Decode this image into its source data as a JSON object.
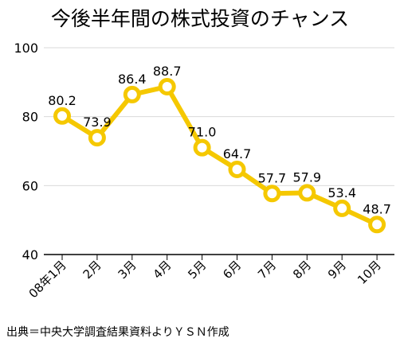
{
  "chart_data": {
    "type": "line",
    "title": "今後半年間の株式投資のチャンス",
    "categories": [
      "08年1月",
      "2月",
      "3月",
      "4月",
      "5月",
      "6月",
      "7月",
      "8月",
      "9月",
      "10月"
    ],
    "series": [
      {
        "values": [
          80.2,
          73.9,
          86.4,
          88.7,
          71.0,
          64.7,
          57.7,
          57.9,
          53.4,
          48.7
        ]
      }
    ],
    "data_labels": [
      "80.2",
      "73.9",
      "86.4",
      "88.7",
      "71.0",
      "64.7",
      "57.7",
      "57.9",
      "53.4",
      "48.7"
    ],
    "y_ticks": [
      40,
      60,
      80,
      100
    ],
    "ylim": [
      40,
      100
    ],
    "xlabel": "",
    "ylabel": "",
    "grid": true,
    "legend": false,
    "source": "出典＝中央大学調査結果資料よりＹＳＮ作成"
  },
  "colors": {
    "line": "#f5c800",
    "marker_fill": "#ffffff",
    "grid": "#d9d9d9",
    "axis": "#000000",
    "text": "#000000"
  }
}
